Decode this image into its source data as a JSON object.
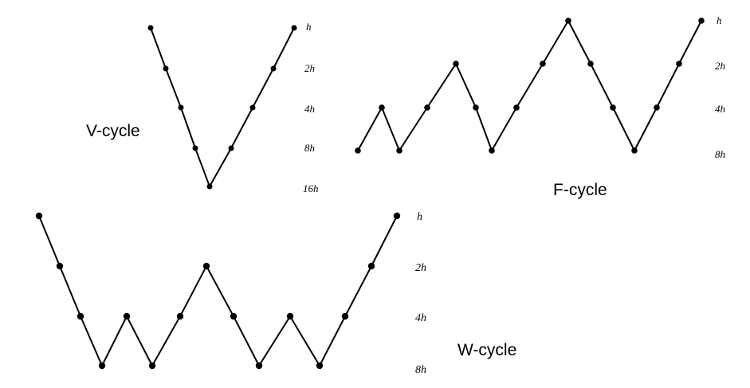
{
  "colors": {
    "line": "#000000",
    "node": "#000000",
    "background": "#ffffff"
  },
  "v_cycle": {
    "title": "V-cycle",
    "levels": [
      "h",
      "2h",
      "4h",
      "8h",
      "16h"
    ],
    "node_levels": [
      0,
      1,
      2,
      3,
      4,
      3,
      2,
      1,
      0
    ]
  },
  "f_cycle": {
    "title": "F-cycle",
    "levels": [
      "h",
      "2h",
      "4h",
      "8h"
    ],
    "node_levels": [
      3,
      2,
      3,
      2,
      1,
      2,
      3,
      2,
      1,
      0,
      1,
      2,
      3,
      2,
      1,
      0
    ]
  },
  "w_cycle": {
    "title": "W-cycle",
    "levels": [
      "h",
      "2h",
      "4h",
      "8h"
    ],
    "node_levels": [
      0,
      1,
      2,
      3,
      2,
      3,
      2,
      1,
      2,
      3,
      2,
      3,
      2,
      1,
      0
    ]
  }
}
